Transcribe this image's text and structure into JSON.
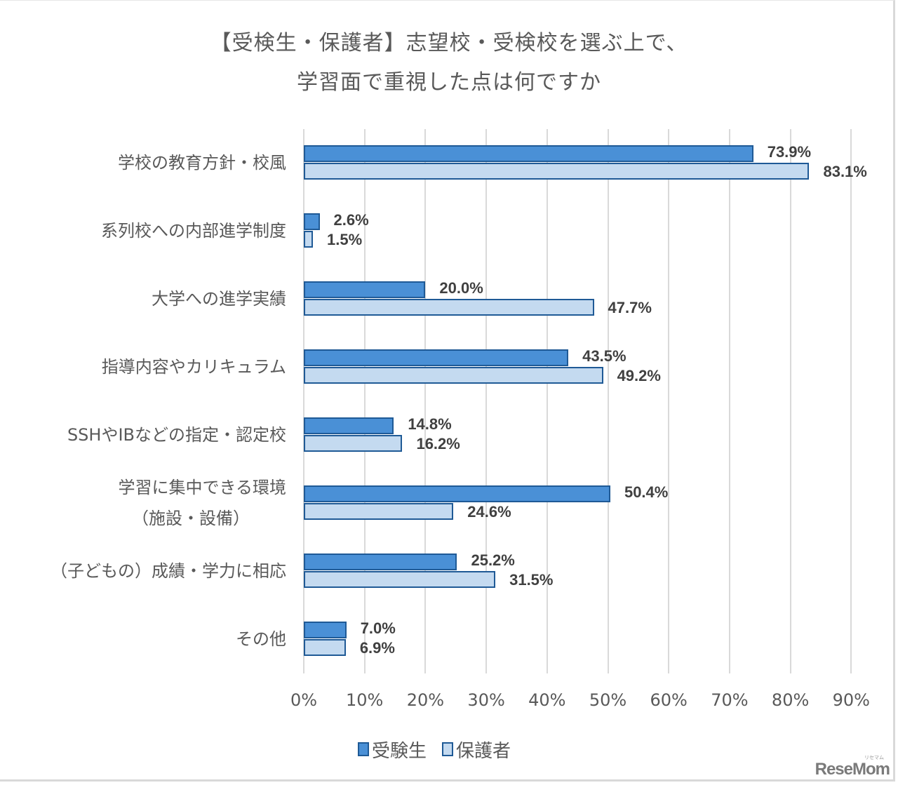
{
  "chart_data": {
    "type": "bar",
    "orientation": "horizontal",
    "title": "【受検生・保護者】志望校・受検校を選ぶ上で、学習面で重視した点は何ですか",
    "title_lines": [
      "【受検生・保護者】志望校・受検校を選ぶ上で、",
      "学習面で重視した点は何ですか"
    ],
    "categories": [
      "学校の教育方針・校風",
      "系列校への内部進学制度",
      "大学への進学実績",
      "指導内容やカリキュラム",
      "SSHやIBなどの指定・認定校",
      "学習に集中できる環境（施設・設備）",
      "（子どもの）成績・学力に相応",
      "その他"
    ],
    "category_display": [
      [
        "学校の教育方針・校風"
      ],
      [
        "系列校への内部進学制度"
      ],
      [
        "大学への進学実績"
      ],
      [
        "指導内容やカリキュラム"
      ],
      [
        "SSHやIBなどの指定・認定校"
      ],
      [
        "学習に集中できる環境",
        "（施設・設備）"
      ],
      [
        "（子どもの）成績・学力に相応"
      ],
      [
        "その他"
      ]
    ],
    "series": [
      {
        "name": "受験生",
        "color": "#4a90d6",
        "values": [
          73.9,
          2.6,
          20.0,
          43.5,
          14.8,
          50.4,
          25.2,
          7.0
        ],
        "labels": [
          "73.9%",
          "2.6%",
          "20.0%",
          "43.5%",
          "14.8%",
          "50.4%",
          "25.2%",
          "7.0%"
        ]
      },
      {
        "name": "保護者",
        "color": "#c4daf0",
        "values": [
          83.1,
          1.5,
          47.7,
          49.2,
          16.2,
          24.6,
          31.5,
          6.9
        ],
        "labels": [
          "83.1%",
          "1.5%",
          "47.7%",
          "49.2%",
          "16.2%",
          "24.6%",
          "31.5%",
          "6.9%"
        ]
      }
    ],
    "bar_border_color": "#1f5a96",
    "xlabel": "",
    "ylabel": "",
    "xlim": [
      0,
      90
    ],
    "x_ticks": [
      "0%",
      "10%",
      "20%",
      "30%",
      "40%",
      "50%",
      "60%",
      "70%",
      "80%",
      "90%"
    ],
    "grid": "vertical",
    "legend_position": "bottom"
  },
  "legend": {
    "items": [
      {
        "label": "受験生",
        "color": "#4a90d6"
      },
      {
        "label": "保護者",
        "color": "#c4daf0"
      }
    ]
  },
  "watermark": {
    "text": "ReseMom",
    "sup": "リセマム"
  }
}
